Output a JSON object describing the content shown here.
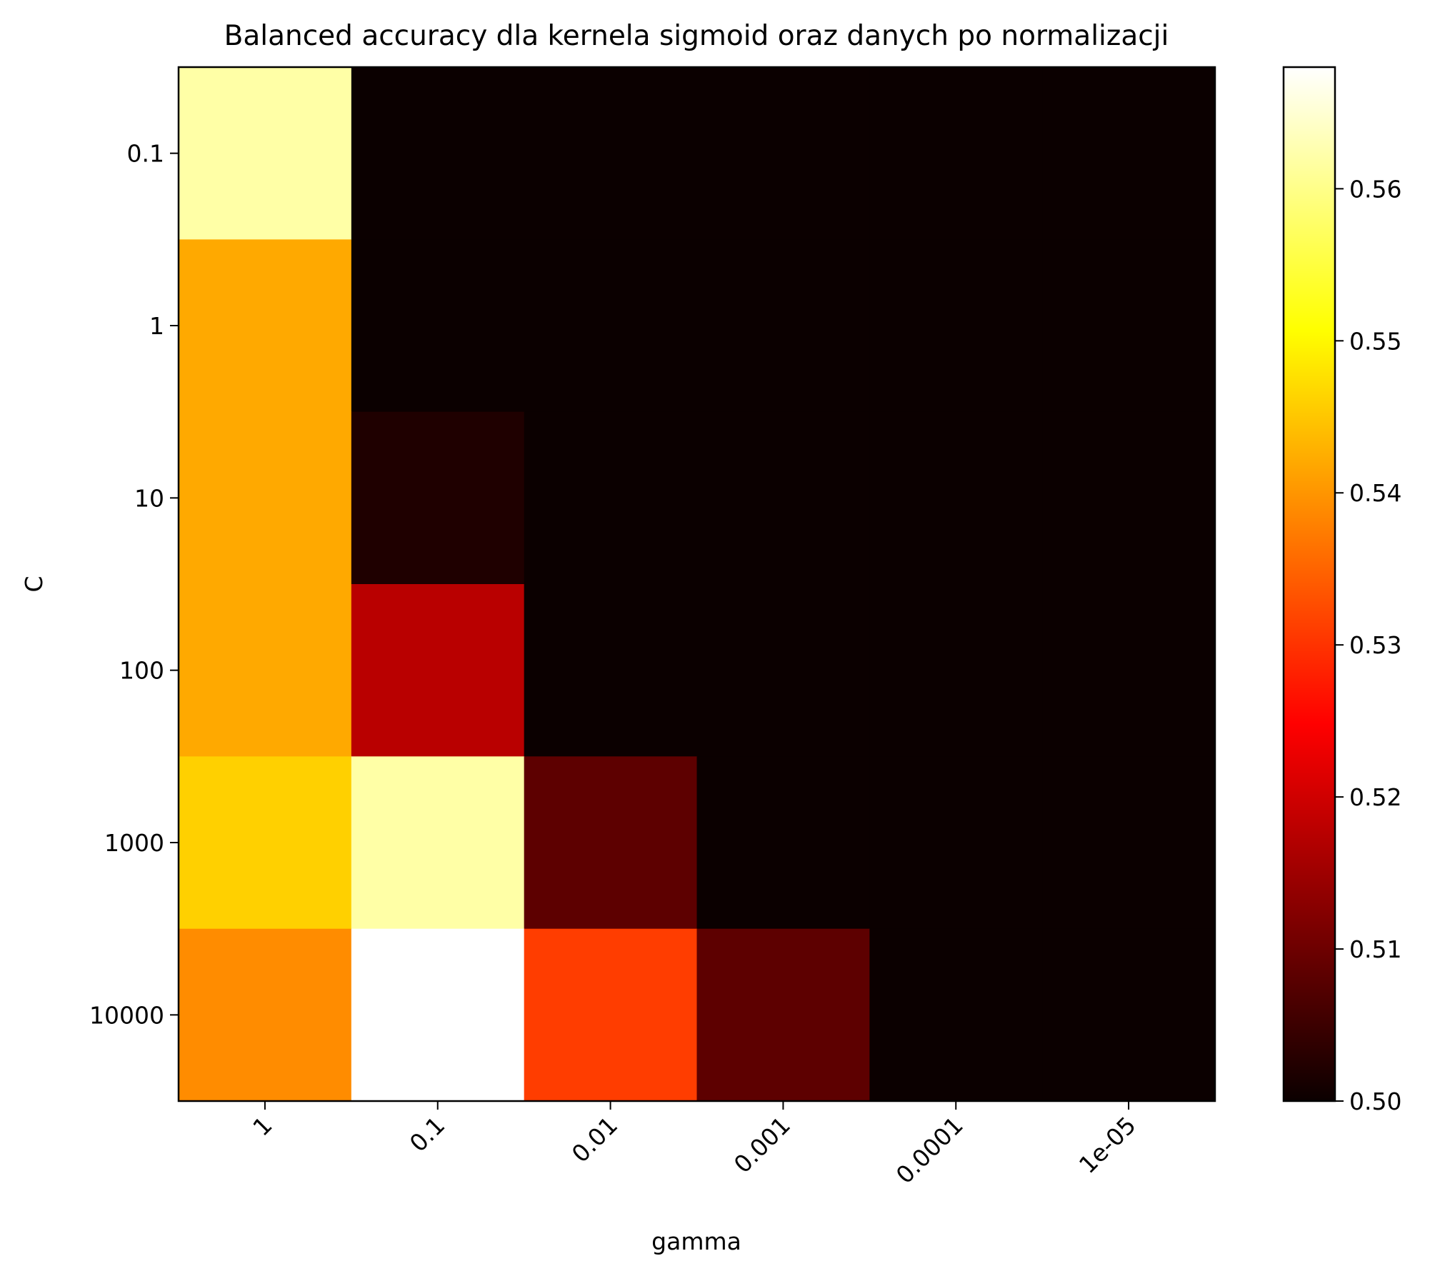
{
  "chart_data": {
    "type": "heatmap",
    "title": "Balanced accuracy dla kernela sigmoid oraz danych po normalizacji",
    "xlabel": "gamma",
    "ylabel": "C",
    "x_categories": [
      "1",
      "0.1",
      "0.01",
      "0.001",
      "0.0001",
      "1e-05"
    ],
    "y_categories": [
      "0.1",
      "1",
      "10",
      "100",
      "1000",
      "10000"
    ],
    "values": [
      [
        0.562,
        0.5,
        0.5,
        0.5,
        0.5,
        0.5
      ],
      [
        0.542,
        0.5,
        0.5,
        0.5,
        0.5,
        0.5
      ],
      [
        0.542,
        0.502,
        0.5,
        0.5,
        0.5,
        0.5
      ],
      [
        0.542,
        0.517,
        0.5,
        0.5,
        0.5,
        0.5
      ],
      [
        0.546,
        0.562,
        0.508,
        0.5,
        0.5,
        0.5
      ],
      [
        0.539,
        0.568,
        0.531,
        0.508,
        0.5,
        0.5
      ]
    ],
    "colormap": "hot",
    "colorbar": {
      "min": 0.5,
      "max": 0.568,
      "ticks": [
        0.5,
        0.51,
        0.52,
        0.53,
        0.54,
        0.55,
        0.56
      ],
      "tick_labels": [
        "0.50",
        "0.51",
        "0.52",
        "0.53",
        "0.54",
        "0.55",
        "0.56"
      ]
    },
    "x_tick_rotation": 45,
    "grid": false
  }
}
